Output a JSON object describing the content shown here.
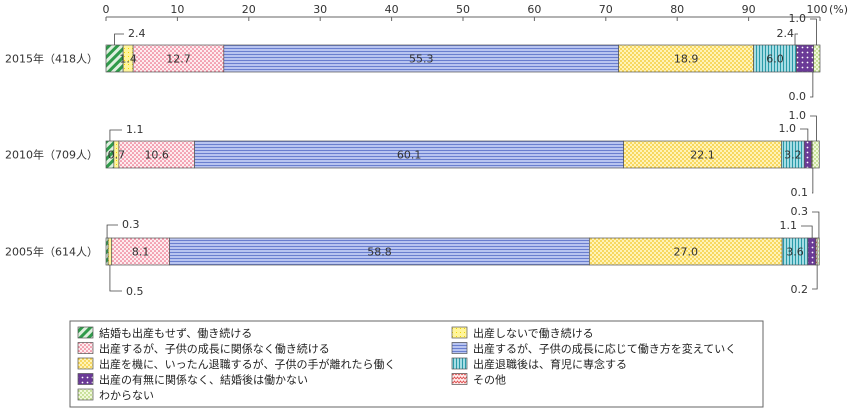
{
  "chart_data": {
    "type": "bar",
    "orientation": "horizontal",
    "stacked": true,
    "unit_label": "(%)",
    "xlim": [
      0,
      100
    ],
    "x_ticks": [
      0,
      10,
      20,
      30,
      40,
      50,
      60,
      70,
      80,
      90,
      100
    ],
    "grid": false,
    "legend_placement": "bottom",
    "categories": [
      "2015年（418人）",
      "2010年（709人）",
      "2005年（614人）"
    ],
    "series": [
      {
        "name": "結婚も出産もせず、働き続ける",
        "values": [
          2.4,
          1.1,
          0.3
        ],
        "color": "#2f9a4a",
        "fill": "#dff0df",
        "pattern": "diag-green",
        "inline_label": [
          false,
          false,
          false
        ]
      },
      {
        "name": "出産しないで働き続ける",
        "values": [
          1.4,
          0.7,
          0.5
        ],
        "color": "#e8c800",
        "fill": "#fff7a6",
        "pattern": "yellow-plain",
        "inline_label": [
          true,
          true,
          false
        ]
      },
      {
        "name": "出産するが、子供の成長に関係なく働き続ける",
        "values": [
          12.7,
          10.6,
          8.1
        ],
        "color": "#e85070",
        "fill": "#fde6ea",
        "pattern": "pink-dots",
        "inline_label": [
          true,
          true,
          true
        ]
      },
      {
        "name": "出産するが、子供の成長に応じて働き方を変えていく",
        "values": [
          55.3,
          60.1,
          58.8
        ],
        "color": "#6478c8",
        "fill": "#aab8ec",
        "pattern": "blue-lines",
        "inline_label": [
          true,
          true,
          true
        ]
      },
      {
        "name": "出産を機に、いったん退職するが、子供の手が離れたら働く",
        "values": [
          18.9,
          22.1,
          27.0
        ],
        "color": "#e0b020",
        "fill": "#fde89a",
        "pattern": "yellow-dots",
        "inline_label": [
          true,
          true,
          true
        ]
      },
      {
        "name": "出産退職後は、育児に専念する",
        "values": [
          6.0,
          3.2,
          3.6
        ],
        "color": "#2a9aa8",
        "fill": "#8fd3dc",
        "pattern": "teal-lines",
        "inline_label": [
          true,
          true,
          true
        ]
      },
      {
        "name": "出産の有無に関係なく、結婚後は働かない",
        "values": [
          2.4,
          1.0,
          1.1
        ],
        "color": "#6a3a96",
        "fill": "#8a5ab4",
        "pattern": "purple-dots",
        "inline_label": [
          false,
          false,
          false
        ]
      },
      {
        "name": "その他",
        "values": [
          0.0,
          0.1,
          0.2
        ],
        "color": "#e05050",
        "fill": "#fbe2e2",
        "pattern": "red-zigzag",
        "inline_label": [
          false,
          false,
          false
        ]
      },
      {
        "name": "わからない",
        "values": [
          1.0,
          1.0,
          0.3
        ],
        "color": "#8cbf3c",
        "fill": "#eef7d6",
        "pattern": "green-grid",
        "inline_label": [
          false,
          false,
          false
        ]
      }
    ],
    "annotations": [
      {
        "row": 0,
        "text": "2.4",
        "side": "top"
      },
      {
        "row": 0,
        "text": "1.0",
        "side": "top"
      },
      {
        "row": 0,
        "text": "2.4",
        "side": "top"
      },
      {
        "row": 0,
        "text": "0.0",
        "side": "bottom"
      },
      {
        "row": 1,
        "text": "1.1",
        "side": "top"
      },
      {
        "row": 1,
        "text": "1.0",
        "side": "top"
      },
      {
        "row": 1,
        "text": "1.0",
        "side": "top"
      },
      {
        "row": 1,
        "text": "0.1",
        "side": "bottom"
      },
      {
        "row": 2,
        "text": "0.3",
        "side": "top"
      },
      {
        "row": 2,
        "text": "0.3",
        "side": "top"
      },
      {
        "row": 2,
        "text": "1.1",
        "side": "top"
      },
      {
        "row": 2,
        "text": "0.5",
        "side": "bottom"
      },
      {
        "row": 2,
        "text": "0.2",
        "side": "bottom"
      }
    ]
  }
}
